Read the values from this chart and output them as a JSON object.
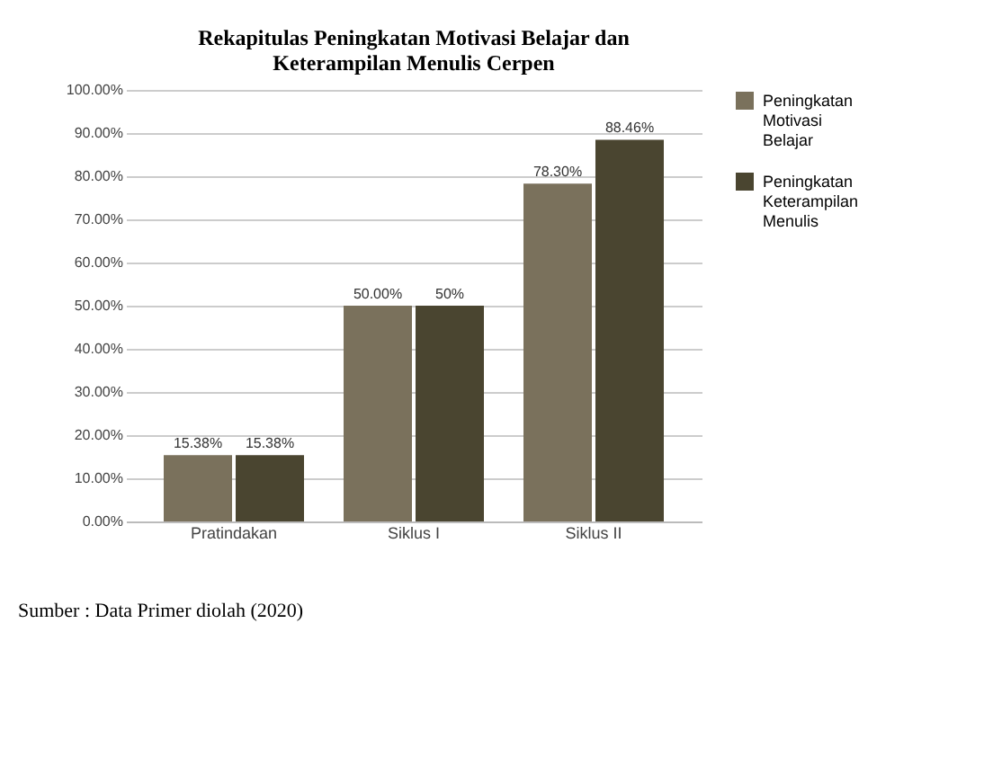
{
  "chart_data": {
    "type": "bar",
    "title": "Rekapitulas Peningkatan Motivasi Belajar dan Keterampilan Menulis Cerpen",
    "categories": [
      "Pratindakan",
      "Siklus I",
      "Siklus II"
    ],
    "series": [
      {
        "name": "Peningkatan Motivasi Belajar",
        "color": "#7a715c",
        "values": [
          15.38,
          50.0,
          78.3
        ],
        "value_labels": [
          "15.38%",
          "50.00%",
          "78.30%"
        ]
      },
      {
        "name": "Peningkatan Keterampilan Menulis",
        "color": "#4a4530",
        "values": [
          15.38,
          50.0,
          88.46
        ],
        "value_labels": [
          "15.38%",
          "50%",
          "88.46%"
        ]
      }
    ],
    "ylim": [
      0,
      100
    ],
    "yticks": [
      {
        "value": 0,
        "label": "0.00%"
      },
      {
        "value": 10,
        "label": "10.00%"
      },
      {
        "value": 20,
        "label": "20.00%"
      },
      {
        "value": 30,
        "label": "30.00%"
      },
      {
        "value": 40,
        "label": "40.00%"
      },
      {
        "value": 50,
        "label": "50.00%"
      },
      {
        "value": 60,
        "label": "60.00%"
      },
      {
        "value": 70,
        "label": "70.00%"
      },
      {
        "value": 80,
        "label": "80.00%"
      },
      {
        "value": 90,
        "label": "90.00%"
      },
      {
        "value": 100,
        "label": "100.00%"
      }
    ],
    "grid": "y",
    "legend": "right",
    "annotations": [
      "Sumber : Data Primer diolah (2020)"
    ]
  }
}
